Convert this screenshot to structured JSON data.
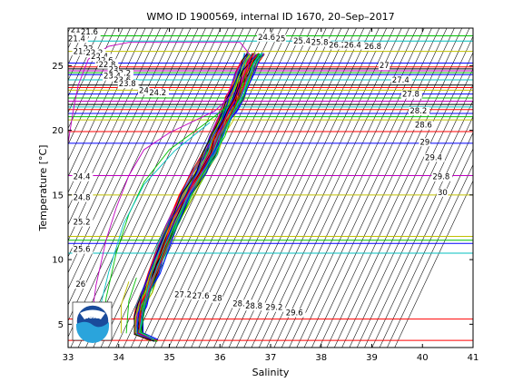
{
  "chart_data": {
    "type": "line",
    "title": "WMO ID 1900569, internal ID 1670, 20–Sep–2017",
    "xlabel": "Salinity",
    "ylabel": "Temperature [°C]",
    "xlim": [
      33,
      41
    ],
    "ylim": [
      3.2,
      27.9
    ],
    "x_ticks": [
      "33",
      "34",
      "35",
      "36",
      "37",
      "38",
      "39",
      "40",
      "41"
    ],
    "y_ticks": [
      "5",
      "10",
      "15",
      "20",
      "25"
    ],
    "x_tick_values": [
      33,
      34,
      35,
      36,
      37,
      38,
      39,
      40,
      41
    ],
    "y_tick_values": [
      5,
      10,
      15,
      20,
      25
    ],
    "grid": false,
    "legend": "none",
    "logo": {
      "text": "NOAA",
      "fill": "#1a4b9b",
      "accent": "#2aa4dc"
    },
    "isopycnal_labels": [
      {
        "text": "21.2",
        "s": 33.05,
        "t": 27.6
      },
      {
        "text": "21.6",
        "s": 33.25,
        "t": 27.4
      },
      {
        "text": "21.4",
        "s": 33.0,
        "t": 26.9
      },
      {
        "text": "21.8",
        "s": 33.1,
        "t": 25.9
      },
      {
        "text": "22",
        "s": 33.3,
        "t": 26.1
      },
      {
        "text": "22.2",
        "s": 33.35,
        "t": 25.8
      },
      {
        "text": "22.4",
        "s": 33.45,
        "t": 25.5
      },
      {
        "text": "22.6",
        "s": 33.55,
        "t": 25.2
      },
      {
        "text": "22.8",
        "s": 33.6,
        "t": 24.9
      },
      {
        "text": "23",
        "s": 33.8,
        "t": 24.5
      },
      {
        "text": "23.2",
        "s": 33.9,
        "t": 24.2
      },
      {
        "text": "23.4",
        "s": 33.7,
        "t": 24.0
      },
      {
        "text": "23.6",
        "s": 33.9,
        "t": 23.7
      },
      {
        "text": "23.8",
        "s": 34.0,
        "t": 23.4
      },
      {
        "text": "24",
        "s": 34.4,
        "t": 22.9
      },
      {
        "text": "24.2",
        "s": 34.6,
        "t": 22.7
      },
      {
        "text": "24.6",
        "s": 36.75,
        "t": 27.0
      },
      {
        "text": "25",
        "s": 37.1,
        "t": 26.9
      },
      {
        "text": "25.4",
        "s": 37.45,
        "t": 26.7
      },
      {
        "text": "25.8",
        "s": 37.8,
        "t": 26.6
      },
      {
        "text": "26.2",
        "s": 38.15,
        "t": 26.4
      },
      {
        "text": "26.4",
        "s": 38.45,
        "t": 26.4
      },
      {
        "text": "26.8",
        "s": 38.85,
        "t": 26.3
      },
      {
        "text": "27",
        "s": 39.15,
        "t": 24.8
      },
      {
        "text": "27.4",
        "s": 39.4,
        "t": 23.7
      },
      {
        "text": "27.8",
        "s": 39.6,
        "t": 22.6
      },
      {
        "text": "28.2",
        "s": 39.75,
        "t": 21.3
      },
      {
        "text": "28.6",
        "s": 39.85,
        "t": 20.2
      },
      {
        "text": "29",
        "s": 39.95,
        "t": 18.9
      },
      {
        "text": "29.4",
        "s": 40.05,
        "t": 17.7
      },
      {
        "text": "29.8",
        "s": 40.2,
        "t": 16.2
      },
      {
        "text": "30",
        "s": 40.3,
        "t": 15.0
      },
      {
        "text": "24.4",
        "s": 33.1,
        "t": 16.2
      },
      {
        "text": "24.8",
        "s": 33.1,
        "t": 14.6
      },
      {
        "text": "25.2",
        "s": 33.1,
        "t": 12.7
      },
      {
        "text": "25.6",
        "s": 33.1,
        "t": 10.6
      },
      {
        "text": "26",
        "s": 33.15,
        "t": 7.9
      },
      {
        "text": "27.2",
        "s": 35.1,
        "t": 7.1
      },
      {
        "text": "27.6",
        "s": 35.45,
        "t": 7.0
      },
      {
        "text": "28",
        "s": 35.85,
        "t": 6.8
      },
      {
        "text": "28.4",
        "s": 36.25,
        "t": 6.4
      },
      {
        "text": "28.8",
        "s": 36.5,
        "t": 6.2
      },
      {
        "text": "29.2",
        "s": 36.9,
        "t": 6.1
      },
      {
        "text": "29.6",
        "s": 37.3,
        "t": 5.7
      }
    ],
    "horizontal_lines": [
      {
        "t": 27.3,
        "color": "#00c000"
      },
      {
        "t": 26.9,
        "color": "#00bfbf"
      },
      {
        "t": 26.1,
        "color": "#c0c000"
      },
      {
        "t": 25.2,
        "color": "#0000ff"
      },
      {
        "t": 24.9,
        "color": "#ff0000"
      },
      {
        "t": 24.75,
        "color": "#000000"
      },
      {
        "t": 24.6,
        "color": "#bf00bf"
      },
      {
        "t": 24.45,
        "color": "#00c000"
      },
      {
        "t": 24.3,
        "color": "#0000ff"
      },
      {
        "t": 23.9,
        "color": "#00bfbf"
      },
      {
        "t": 23.5,
        "color": "#000000"
      },
      {
        "t": 23.3,
        "color": "#ff0000"
      },
      {
        "t": 23.1,
        "color": "#c0c000"
      },
      {
        "t": 22.8,
        "color": "#0000ff"
      },
      {
        "t": 22.5,
        "color": "#00c000"
      },
      {
        "t": 22.25,
        "color": "#bf00bf"
      },
      {
        "t": 22.0,
        "color": "#000000"
      },
      {
        "t": 21.8,
        "color": "#00bfbf"
      },
      {
        "t": 21.6,
        "color": "#ff0000"
      },
      {
        "t": 21.3,
        "color": "#0000ff"
      },
      {
        "t": 21.05,
        "color": "#00c000"
      },
      {
        "t": 20.8,
        "color": "#c0c000"
      },
      {
        "t": 19.9,
        "color": "#ff0000"
      },
      {
        "t": 19.0,
        "color": "#0000ff"
      },
      {
        "t": 16.5,
        "color": "#bf00bf"
      },
      {
        "t": 15.0,
        "color": "#c0c000"
      },
      {
        "t": 11.8,
        "color": "#c0c000"
      },
      {
        "t": 11.5,
        "color": "#00c000"
      },
      {
        "t": 11.25,
        "color": "#0000ff"
      },
      {
        "t": 10.5,
        "color": "#00bfbf"
      },
      {
        "t": 5.4,
        "color": "#ff0000"
      },
      {
        "t": 3.75,
        "color": "#ff0000"
      }
    ],
    "profile_colors": [
      "#0000ff",
      "#00c000",
      "#ff0000",
      "#00bfbf",
      "#bf00bf",
      "#c0c000",
      "#000000"
    ],
    "profile_mean": [
      {
        "s": 34.7,
        "t": 3.75
      },
      {
        "s": 34.4,
        "t": 4.3
      },
      {
        "s": 34.4,
        "t": 5.5
      },
      {
        "s": 34.45,
        "t": 6.5
      },
      {
        "s": 34.55,
        "t": 7.5
      },
      {
        "s": 34.7,
        "t": 9.0
      },
      {
        "s": 34.88,
        "t": 11.0
      },
      {
        "s": 35.1,
        "t": 13.0
      },
      {
        "s": 35.35,
        "t": 15.0
      },
      {
        "s": 35.6,
        "t": 16.8
      },
      {
        "s": 35.8,
        "t": 18.2
      },
      {
        "s": 35.95,
        "t": 19.6
      },
      {
        "s": 36.1,
        "t": 20.8
      },
      {
        "s": 36.2,
        "t": 21.6
      },
      {
        "s": 36.3,
        "t": 22.5
      },
      {
        "s": 36.4,
        "t": 23.5
      },
      {
        "s": 36.5,
        "t": 24.5
      },
      {
        "s": 36.6,
        "t": 25.4
      },
      {
        "s": 36.7,
        "t": 25.9
      }
    ],
    "outlier_profiles": [
      {
        "color": "#bf00bf",
        "points": [
          {
            "s": 33.45,
            "t": 3.6
          },
          {
            "s": 33.45,
            "t": 5.0
          },
          {
            "s": 33.55,
            "t": 8.0
          },
          {
            "s": 33.75,
            "t": 11.5
          },
          {
            "s": 33.95,
            "t": 14.0
          },
          {
            "s": 34.2,
            "t": 16.5
          },
          {
            "s": 34.5,
            "t": 18.5
          },
          {
            "s": 35.0,
            "t": 19.8
          },
          {
            "s": 35.9,
            "t": 21.5
          },
          {
            "s": 36.3,
            "t": 23.0
          }
        ]
      },
      {
        "color": "#00c000",
        "points": [
          {
            "s": 33.7,
            "t": 4.0
          },
          {
            "s": 33.75,
            "t": 7.0
          },
          {
            "s": 33.95,
            "t": 10.5
          },
          {
            "s": 34.2,
            "t": 13.5
          },
          {
            "s": 34.5,
            "t": 16.0
          },
          {
            "s": 35.0,
            "t": 18.5
          },
          {
            "s": 35.7,
            "t": 20.5
          },
          {
            "s": 36.2,
            "t": 22.0
          }
        ]
      },
      {
        "color": "#00bfbf",
        "points": [
          {
            "s": 33.5,
            "t": 4.2
          },
          {
            "s": 33.8,
            "t": 9.0
          },
          {
            "s": 34.1,
            "t": 12.8
          },
          {
            "s": 34.5,
            "t": 15.8
          },
          {
            "s": 35.1,
            "t": 18.4
          },
          {
            "s": 35.8,
            "t": 20.6
          }
        ]
      },
      {
        "color": "#bf00bf",
        "points": [
          {
            "s": 33.0,
            "t": 19.0
          },
          {
            "s": 33.1,
            "t": 21.5
          },
          {
            "s": 33.2,
            "t": 23.5
          },
          {
            "s": 33.4,
            "t": 25.5
          },
          {
            "s": 33.8,
            "t": 26.5
          },
          {
            "s": 34.2,
            "t": 26.8
          },
          {
            "s": 36.4,
            "t": 26.8
          },
          {
            "s": 36.6,
            "t": 25.8
          }
        ]
      },
      {
        "color": "#c0c000",
        "points": [
          {
            "s": 34.05,
            "t": 4.3
          },
          {
            "s": 34.05,
            "t": 6.5
          },
          {
            "s": 34.2,
            "t": 8.3
          }
        ]
      },
      {
        "color": "#00c000",
        "points": [
          {
            "s": 34.15,
            "t": 4.3
          },
          {
            "s": 34.2,
            "t": 6.8
          },
          {
            "s": 34.35,
            "t": 8.6
          }
        ]
      }
    ]
  }
}
